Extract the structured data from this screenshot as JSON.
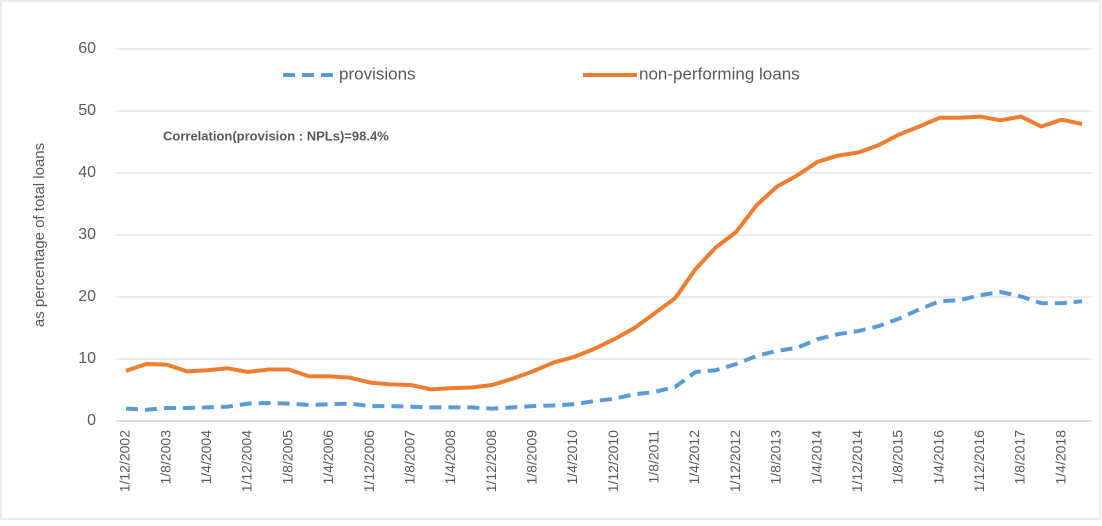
{
  "chart_data": {
    "type": "line",
    "y_label": "as percentage of total loans",
    "annotation": "Correlation(provision : NPLs)=98.4%",
    "categories": [
      "1/12/2002",
      null,
      "1/8/2003",
      null,
      "1/4/2004",
      null,
      "1/12/2004",
      null,
      "1/8/2005",
      null,
      "1/4/2006",
      null,
      "1/12/2006",
      null,
      "1/8/2007",
      null,
      "1/4/2008",
      null,
      "1/12/2008",
      null,
      "1/8/2009",
      null,
      "1/4/2010",
      null,
      "1/12/2010",
      null,
      "1/8/2011",
      null,
      "1/4/2012",
      null,
      "1/12/2012",
      null,
      "1/8/2013",
      null,
      "1/4/2014",
      null,
      "1/12/2014",
      null,
      "1/8/2015",
      null,
      "1/4/2016",
      null,
      "1/12/2016",
      null,
      "1/8/2017",
      null,
      "1/4/2018",
      null
    ],
    "series": [
      {
        "name": "provisions",
        "color": "#5b9bd5",
        "dashed": true,
        "values": [
          2.0,
          1.8,
          2.1,
          2.1,
          2.2,
          2.3,
          2.8,
          2.9,
          2.8,
          2.6,
          2.7,
          2.8,
          2.4,
          2.4,
          2.3,
          2.2,
          2.2,
          2.2,
          2.0,
          2.2,
          2.4,
          2.5,
          2.7,
          3.2,
          3.6,
          4.3,
          4.7,
          5.5,
          7.9,
          8.2,
          9.2,
          10.5,
          11.3,
          11.8,
          13.2,
          14.0,
          14.5,
          15.3,
          16.5,
          18.0,
          19.3,
          19.5,
          20.3,
          20.8,
          20.1,
          19.0,
          19.0,
          19.3
        ]
      },
      {
        "name": "non-performing loans",
        "color": "#ed7d31",
        "dashed": false,
        "values": [
          8.1,
          9.2,
          9.1,
          8.0,
          8.2,
          8.5,
          7.9,
          8.3,
          8.3,
          7.2,
          7.2,
          7.0,
          6.2,
          5.9,
          5.8,
          5.1,
          5.3,
          5.4,
          5.8,
          6.8,
          8.0,
          9.4,
          10.3,
          11.6,
          13.2,
          15.0,
          17.4,
          19.8,
          24.5,
          28.0,
          30.5,
          34.8,
          37.8,
          39.6,
          41.8,
          42.8,
          43.3,
          44.5,
          46.2,
          47.5,
          48.9,
          48.9,
          49.1,
          48.5,
          49.1,
          47.5,
          48.6,
          47.9
        ]
      }
    ],
    "ylim": [
      0,
      60
    ],
    "yticks": [
      0,
      10,
      20,
      30,
      40,
      50,
      60
    ],
    "grid": true,
    "legend": "top"
  }
}
